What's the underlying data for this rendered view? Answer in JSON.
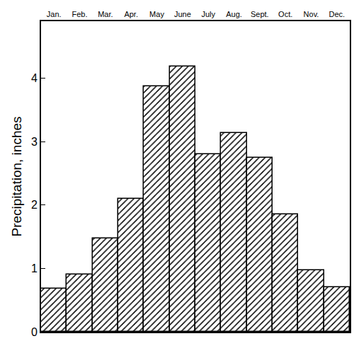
{
  "chart_data": {
    "type": "bar",
    "y_label": "Precipitation, inches",
    "categories": [
      "Jan.",
      "Feb.",
      "Mar.",
      "Apr.",
      "May",
      "June",
      "July",
      "Aug.",
      "Sept.",
      "Oct.",
      "Nov.",
      "Dec."
    ],
    "values": [
      0.68,
      0.9,
      1.47,
      2.1,
      3.87,
      4.19,
      2.8,
      3.14,
      2.75,
      1.85,
      0.97,
      0.7
    ],
    "color": "#000000",
    "marker": "hatched",
    "ylim": [
      0,
      4.9
    ],
    "yticks": [
      0,
      1,
      2,
      3,
      4
    ],
    "grid": false
  }
}
